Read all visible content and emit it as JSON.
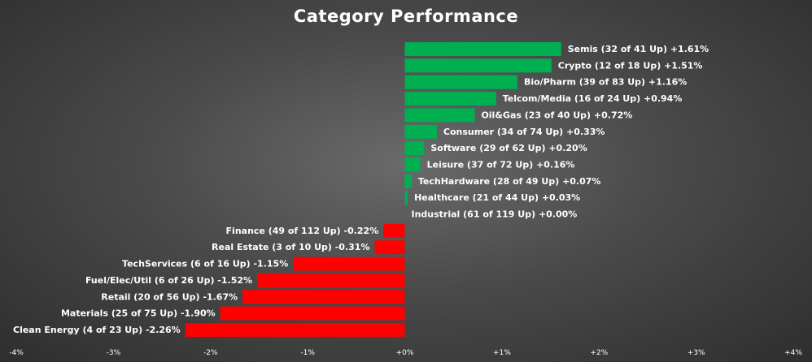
{
  "chart_data": {
    "type": "bar",
    "orientation": "horizontal",
    "title": "Category Performance",
    "xlabel": "",
    "ylabel": "",
    "xlim": [
      -4,
      4
    ],
    "grid": false,
    "legend": "none",
    "positive_color": "#00b050",
    "negative_color": "#ff0000",
    "x_ticks": [
      "-4%",
      "-3%",
      "-2%",
      "-1%",
      "+0%",
      "+1%",
      "+2%",
      "+3%",
      "+4%"
    ],
    "categories": [
      "Semis (32 of 41 Up) +1.61%",
      "Crypto (12 of 18 Up) +1.51%",
      "Bio/Pharm (39 of 83 Up) +1.16%",
      "Telcom/Media (16 of 24 Up) +0.94%",
      "Oil&Gas (23 of 40 Up) +0.72%",
      "Consumer (34 of 74 Up) +0.33%",
      "Software (29 of 62 Up) +0.20%",
      "Leisure (37 of 72 Up) +0.16%",
      "TechHardware (28 of 49 Up) +0.07%",
      "Healthcare (21 of 44 Up) +0.03%",
      "Industrial (61 of 119 Up) +0.00%",
      "Finance (49 of 112 Up) -0.22%",
      "Real Estate (3 of 10 Up) -0.31%",
      "TechServices (6 of 16 Up) -1.15%",
      "Fuel/Elec/Util (6 of 26 Up) -1.52%",
      "Retail (20 of 56 Up) -1.67%",
      "Materials (25 of 75 Up) -1.90%",
      "Clean Energy (4 of 23 Up) -2.26%"
    ],
    "values": [
      1.61,
      1.51,
      1.16,
      0.94,
      0.72,
      0.33,
      0.2,
      0.16,
      0.07,
      0.03,
      0.0,
      -0.22,
      -0.31,
      -1.15,
      -1.52,
      -1.67,
      -1.9,
      -2.26
    ]
  }
}
